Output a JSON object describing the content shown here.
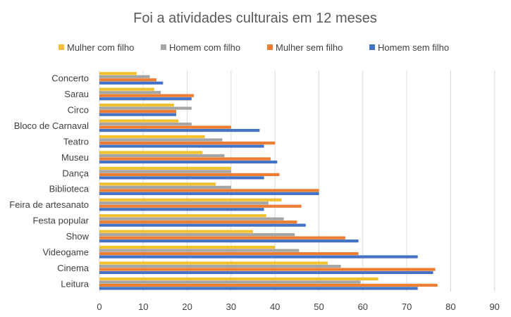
{
  "chart_data": {
    "type": "bar",
    "orientation": "horizontal",
    "title": "Foi a atividades culturais em 12 meses",
    "xlim": [
      0,
      90
    ],
    "xticks": [
      0,
      10,
      20,
      30,
      40,
      50,
      60,
      70,
      80,
      90
    ],
    "grid": true,
    "legend_position": "top",
    "categories": [
      "Leitura",
      "Cinema",
      "Videogame",
      "Show",
      "Festa popular",
      "Feira de artesanato",
      "Biblioteca",
      "Dança",
      "Museu",
      "Teatro",
      "Bloco de Carnaval",
      "Circo",
      "Sarau",
      "Concerto"
    ],
    "series": [
      {
        "name": "Mulher com filho",
        "color": "#F2C12E",
        "values": [
          63.5,
          52,
          40,
          35,
          38,
          41.5,
          26.5,
          30,
          23.5,
          24,
          18,
          17,
          12.5,
          8.5
        ]
      },
      {
        "name": "Homem com filho",
        "color": "#A5A5A5",
        "values": [
          59.5,
          55,
          45.5,
          44.5,
          42,
          38.5,
          30,
          30,
          28.5,
          28,
          21,
          21,
          14,
          11.5
        ]
      },
      {
        "name": "Mulher sem filho",
        "color": "#ED7D31",
        "values": [
          77,
          76.5,
          59,
          56,
          45,
          46,
          50,
          41,
          39,
          40,
          30,
          17.5,
          21.5,
          13
        ]
      },
      {
        "name": "Homem sem filho",
        "color": "#4472C4",
        "values": [
          72.5,
          76,
          72.5,
          59,
          47,
          37.5,
          50,
          37.5,
          40.5,
          37.5,
          36.5,
          17.5,
          21,
          14.5
        ]
      }
    ]
  }
}
